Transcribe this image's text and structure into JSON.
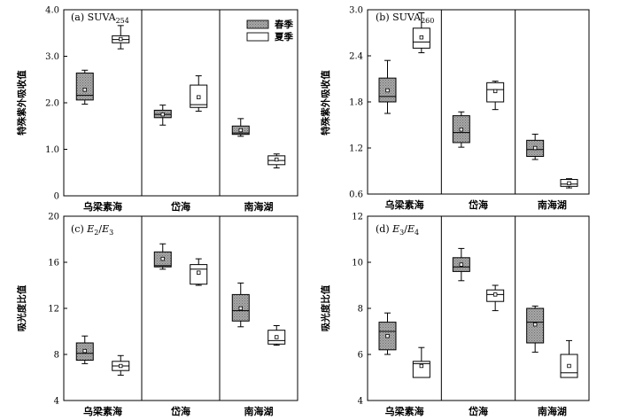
{
  "colors": {
    "axis": "#000000",
    "spring_fill": "#9c9c9c",
    "summer_fill": "#ffffff"
  },
  "legend": {
    "spring": "春季",
    "summer": "夏季",
    "placement": "top-right of panel (a)"
  },
  "chart_data": [
    {
      "type": "box",
      "panel": "a",
      "title_prefix": "(a) ",
      "title_main": "SUVA",
      "title_sub": "254",
      "ylabel": "特殊紫外吸收值",
      "ylim": [
        0,
        4
      ],
      "yticks": [
        "0",
        "1.0",
        "2.0",
        "3.0",
        "4.0"
      ],
      "ytick_values": [
        0,
        1,
        2,
        3,
        4
      ],
      "categories": [
        "乌梁素海",
        "岱海",
        "南海湖"
      ],
      "series": [
        {
          "name": "春季",
          "boxes": [
            {
              "min": 1.97,
              "q1": 2.06,
              "median": 2.16,
              "q3": 2.64,
              "max": 2.7,
              "mean": 2.28
            },
            {
              "min": 1.52,
              "q1": 1.68,
              "median": 1.75,
              "q3": 1.84,
              "max": 1.95,
              "mean": 1.75
            },
            {
              "min": 1.28,
              "q1": 1.32,
              "median": 1.35,
              "q3": 1.5,
              "max": 1.66,
              "mean": 1.41
            }
          ]
        },
        {
          "name": "夏季",
          "boxes": [
            {
              "min": 3.16,
              "q1": 3.29,
              "median": 3.36,
              "q3": 3.44,
              "max": 3.66,
              "mean": 3.37
            },
            {
              "min": 1.82,
              "q1": 1.9,
              "median": 1.96,
              "q3": 2.38,
              "max": 2.58,
              "mean": 2.12
            },
            {
              "min": 0.6,
              "q1": 0.67,
              "median": 0.76,
              "q3": 0.86,
              "max": 0.9,
              "mean": 0.78
            }
          ]
        }
      ]
    },
    {
      "type": "box",
      "panel": "b",
      "title_prefix": "(b) ",
      "title_main": "SUVA",
      "title_sub": "260",
      "ylabel": "特殊紫外吸收值",
      "ylim": [
        0.6,
        3.0
      ],
      "yticks": [
        "0.6",
        "1.2",
        "1.8",
        "2.4",
        "3.0"
      ],
      "ytick_values": [
        0.6,
        1.2,
        1.8,
        2.4,
        3.0
      ],
      "categories": [
        "乌梁素海",
        "岱海",
        "南海湖"
      ],
      "series": [
        {
          "name": "春季",
          "boxes": [
            {
              "min": 1.65,
              "q1": 1.8,
              "median": 1.87,
              "q3": 2.11,
              "max": 2.34,
              "mean": 1.95
            },
            {
              "min": 1.21,
              "q1": 1.27,
              "median": 1.4,
              "q3": 1.62,
              "max": 1.67,
              "mean": 1.44
            },
            {
              "min": 1.05,
              "q1": 1.09,
              "median": 1.18,
              "q3": 1.3,
              "max": 1.38,
              "mean": 1.2
            }
          ]
        },
        {
          "name": "夏季",
          "boxes": [
            {
              "min": 2.44,
              "q1": 2.5,
              "median": 2.58,
              "q3": 2.76,
              "max": 2.96,
              "mean": 2.64
            },
            {
              "min": 1.7,
              "q1": 1.8,
              "median": 1.96,
              "q3": 2.05,
              "max": 2.07,
              "mean": 1.94
            },
            {
              "min": 0.68,
              "q1": 0.7,
              "median": 0.73,
              "q3": 0.79,
              "max": 0.8,
              "mean": 0.74
            }
          ]
        }
      ]
    },
    {
      "type": "box",
      "panel": "c",
      "title_prefix": "(c) ",
      "title_e1": "E",
      "title_s1": "2",
      "title_slash": "/",
      "title_e2": "E",
      "title_s2": "3",
      "ylabel": "吸光度比值",
      "ylim": [
        4,
        20
      ],
      "yticks": [
        "4",
        "8",
        "12",
        "16",
        "20"
      ],
      "ytick_values": [
        4,
        8,
        12,
        16,
        20
      ],
      "categories": [
        "乌梁素海",
        "岱海",
        "南海湖"
      ],
      "series": [
        {
          "name": "春季",
          "boxes": [
            {
              "min": 7.2,
              "q1": 7.5,
              "median": 8.1,
              "q3": 9.0,
              "max": 9.6,
              "mean": 8.3
            },
            {
              "min": 15.4,
              "q1": 15.6,
              "median": 15.7,
              "q3": 16.9,
              "max": 17.6,
              "mean": 16.3
            },
            {
              "min": 10.4,
              "q1": 10.9,
              "median": 11.8,
              "q3": 13.2,
              "max": 14.2,
              "mean": 12.0
            }
          ]
        },
        {
          "name": "夏季",
          "boxes": [
            {
              "min": 6.2,
              "q1": 6.6,
              "median": 7.0,
              "q3": 7.4,
              "max": 7.9,
              "mean": 7.0
            },
            {
              "min": 14.0,
              "q1": 14.1,
              "median": 15.4,
              "q3": 15.8,
              "max": 16.3,
              "mean": 15.1
            },
            {
              "min": 8.8,
              "q1": 8.9,
              "median": 9.2,
              "q3": 10.1,
              "max": 10.5,
              "mean": 9.5
            }
          ]
        }
      ]
    },
    {
      "type": "box",
      "panel": "d",
      "title_prefix": "(d) ",
      "title_e1": "E",
      "title_s1": "3",
      "title_slash": "/",
      "title_e2": "E",
      "title_s2": "4",
      "ylabel": "吸光度比值",
      "ylim": [
        4,
        12
      ],
      "yticks": [
        "4",
        "6",
        "8",
        "10",
        "12"
      ],
      "ytick_values": [
        4,
        6,
        8,
        10,
        12
      ],
      "categories": [
        "乌梁素海",
        "岱海",
        "南海湖"
      ],
      "series": [
        {
          "name": "春季",
          "boxes": [
            {
              "min": 6.0,
              "q1": 6.2,
              "median": 7.0,
              "q3": 7.4,
              "max": 7.8,
              "mean": 6.8
            },
            {
              "min": 9.2,
              "q1": 9.6,
              "median": 9.8,
              "q3": 10.2,
              "max": 10.6,
              "mean": 9.9
            },
            {
              "min": 6.1,
              "q1": 6.5,
              "median": 7.4,
              "q3": 8.0,
              "max": 8.1,
              "mean": 7.3
            }
          ]
        },
        {
          "name": "夏季",
          "boxes": [
            {
              "min": 5.0,
              "q1": 5.0,
              "median": 5.6,
              "q3": 5.7,
              "max": 6.3,
              "mean": 5.5
            },
            {
              "min": 7.9,
              "q1": 8.3,
              "median": 8.6,
              "q3": 8.8,
              "max": 9.0,
              "mean": 8.6
            },
            {
              "min": 5.0,
              "q1": 5.0,
              "median": 5.2,
              "q3": 6.0,
              "max": 6.6,
              "mean": 5.5
            }
          ]
        }
      ]
    }
  ]
}
